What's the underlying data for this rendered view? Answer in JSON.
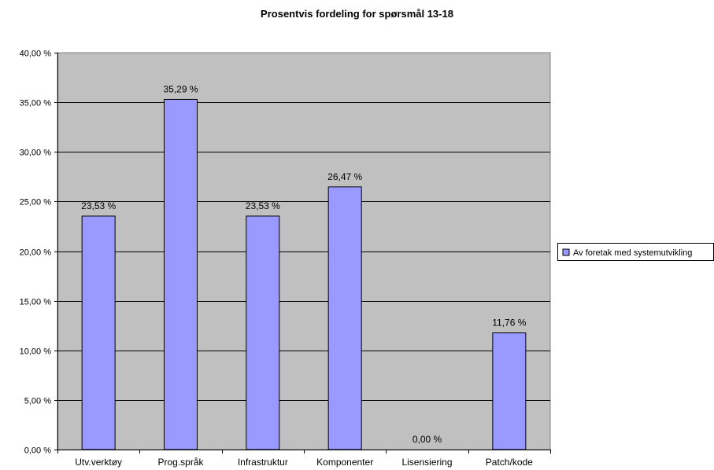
{
  "chart_data": {
    "type": "bar",
    "title": "Prosentvis fordeling for spørsmål 13-18",
    "categories": [
      "Utv.verktøy",
      "Prog.språk",
      "Infrastruktur",
      "Komponenter",
      "Lisensiering",
      "Patch/kode"
    ],
    "series": [
      {
        "name": "Av foretak med systemutvikling",
        "values": [
          23.53,
          35.29,
          23.53,
          26.47,
          0.0,
          11.76
        ],
        "labels": [
          "23,53 %",
          "35,29 %",
          "23,53 %",
          "26,47 %",
          "0,00 %",
          "11,76 %"
        ],
        "color": "#9999FF"
      }
    ],
    "y_ticks": [
      "0,00 %",
      "5,00 %",
      "10,00 %",
      "15,00 %",
      "20,00 %",
      "25,00 %",
      "30,00 %",
      "35,00 %",
      "40,00 %"
    ],
    "ylim": [
      0,
      40
    ],
    "grid": true,
    "legend_position": "right",
    "plot_background": "#C0C0C0",
    "bar_border_color": "#000000",
    "gridline_color": "#000000"
  }
}
